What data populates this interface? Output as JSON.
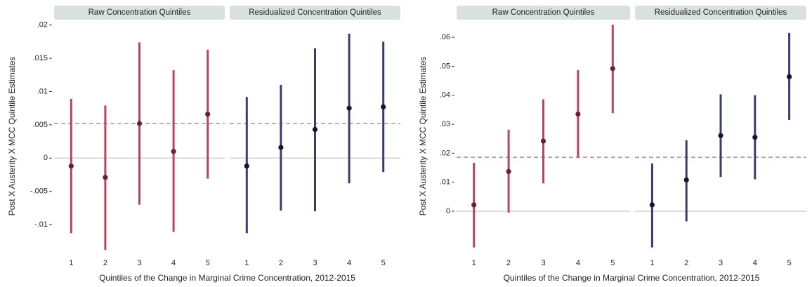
{
  "chart_data": [
    {
      "type": "errorbar",
      "y_label": "Post X Austerity X MCC Quintile Estimates",
      "x_label": "Quintiles of the Change in Marginal Crime Concentration, 2012-2015",
      "categories": [
        1,
        2,
        3,
        4,
        5
      ],
      "ylim": [
        -0.014,
        0.0206
      ],
      "yticks": [
        {
          "value": -0.01,
          "label": "-.01"
        },
        {
          "value": -0.005,
          "label": "-.005"
        },
        0,
        {
          "value": 0.005,
          "label": ".005"
        },
        {
          "value": 0.01,
          "label": ".01"
        },
        {
          "value": 0.015,
          "label": ".015"
        },
        {
          "value": 0.02,
          "label": ".02"
        }
      ],
      "reference_line": 0.0052,
      "reference_color": "#8c7f86",
      "zero_line": true,
      "panels": [
        {
          "title": "Raw Concentration Quintiles",
          "color": "#b8455c",
          "point_color": "#6e1f33",
          "estimates": [
            -0.0012,
            -0.0029,
            0.0052,
            0.001,
            0.0066
          ],
          "lower": [
            -0.0113,
            -0.0138,
            -0.007,
            -0.0111,
            -0.0031
          ],
          "upper": [
            0.0089,
            0.0079,
            0.0174,
            0.0132,
            0.0163
          ]
        },
        {
          "title": "Residualized Concentration Quintiles",
          "color": "#3a3d6a",
          "point_color": "#15172e",
          "estimates": [
            -0.0012,
            0.0016,
            0.0043,
            0.0075,
            0.0077
          ],
          "lower": [
            -0.0113,
            -0.0079,
            -0.008,
            -0.0038,
            -0.0021
          ],
          "upper": [
            0.0092,
            0.011,
            0.0165,
            0.0187,
            0.0175
          ]
        }
      ]
    },
    {
      "type": "errorbar",
      "y_label": "Post X Austerity X MCC Quintile Estimates",
      "x_label": "Quintiles of the Change in Marginal Crime Concentration, 2012-2015",
      "categories": [
        1,
        2,
        3,
        4,
        5
      ],
      "ylim": [
        -0.0138,
        0.0656
      ],
      "yticks": [
        0,
        {
          "value": 0.01,
          "label": ".01"
        },
        {
          "value": 0.02,
          "label": ".02"
        },
        {
          "value": 0.03,
          "label": ".03"
        },
        {
          "value": 0.04,
          "label": ".04"
        },
        {
          "value": 0.05,
          "label": ".05"
        },
        {
          "value": 0.06,
          "label": ".06"
        }
      ],
      "reference_line": 0.0186,
      "reference_color": "#8c7f86",
      "zero_line": true,
      "panels": [
        {
          "title": "Raw Concentration Quintiles",
          "color": "#b8455c",
          "point_color": "#6e1f33",
          "estimates": [
            0.0022,
            0.0137,
            0.0242,
            0.0335,
            0.0492
          ],
          "lower": [
            -0.0125,
            -0.0005,
            0.0096,
            0.0185,
            0.0338
          ],
          "upper": [
            0.0167,
            0.0281,
            0.0386,
            0.0487,
            0.0643
          ]
        },
        {
          "title": "Residualized Concentration Quintiles",
          "color": "#3a3d6a",
          "point_color": "#15172e",
          "estimates": [
            0.0022,
            0.0108,
            0.0261,
            0.0255,
            0.0464
          ],
          "lower": [
            -0.0125,
            -0.0035,
            0.0118,
            0.011,
            0.0315
          ],
          "upper": [
            0.0165,
            0.0245,
            0.0403,
            0.04,
            0.0615
          ]
        }
      ]
    }
  ]
}
